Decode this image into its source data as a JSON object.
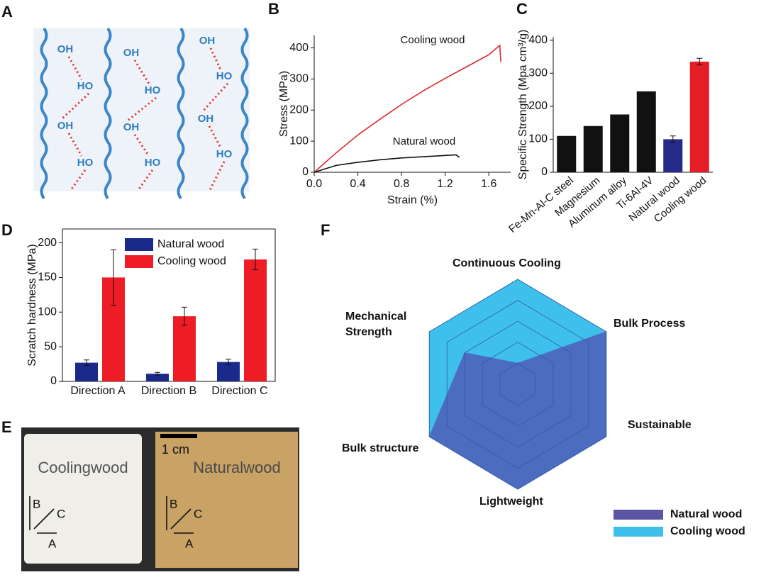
{
  "panel_labels": [
    "A",
    "B",
    "C",
    "D",
    "E",
    "F"
  ],
  "diagram_a": {
    "labels": [
      "OH",
      "HO",
      "OH",
      "HO",
      "OH",
      "HO",
      "OH",
      "HO",
      "OH",
      "HO",
      "OH",
      "HO"
    ]
  },
  "photo_e": {
    "left_label": "Coolingwood",
    "right_label": "Naturalwood",
    "scale": "1 cm",
    "directions": [
      "A",
      "B",
      "C"
    ]
  },
  "chart_data": [
    {
      "type": "line",
      "xlabel": "Strain (%)",
      "ylabel": "Stress (MPa)",
      "xlim": [
        0,
        1.8
      ],
      "xticks": [
        {
          "value": 0,
          "label": "0.0"
        },
        0.4,
        0.8,
        1.2,
        1.6
      ],
      "ylim": [
        0,
        440
      ],
      "yticks": [
        0,
        100,
        200,
        300,
        400
      ],
      "series": [
        {
          "name": "Cooling wood",
          "color": "#e0262b",
          "x": [
            0,
            0.2,
            0.4,
            0.6,
            0.8,
            1.0,
            1.2,
            1.4,
            1.6,
            1.7,
            1.71
          ],
          "values": [
            0,
            62,
            120,
            170,
            218,
            262,
            302,
            340,
            378,
            408,
            355
          ]
        },
        {
          "name": "Natural wood",
          "color": "#111111",
          "x": [
            0,
            0.2,
            0.4,
            0.6,
            0.8,
            1.0,
            1.2,
            1.3,
            1.33
          ],
          "values": [
            0,
            22,
            32,
            40,
            46,
            50,
            54,
            56,
            48
          ]
        }
      ]
    },
    {
      "type": "bar",
      "ylabel": "Specific Strength (Mpa cm³/g)",
      "categories": [
        "Fe-Mn-Al-C steel",
        "Magnesium",
        "Aluminum alloy",
        "Ti-6Al-4V",
        "Natural wood",
        "Cooling wood"
      ],
      "values": [
        110,
        140,
        175,
        245,
        100,
        335
      ],
      "errors": [
        null,
        null,
        null,
        null,
        10,
        10
      ],
      "colors": [
        "#111111",
        "#111111",
        "#111111",
        "#111111",
        "#252a8a",
        "#e31e24"
      ],
      "ylim": [
        0,
        410
      ],
      "yticks": [
        0,
        100,
        200,
        300,
        400
      ]
    },
    {
      "type": "grouped_bar",
      "ylabel": "Scratch hardness (MPa)",
      "categories": [
        "Direction A",
        "Direction B",
        "Direction C"
      ],
      "series": [
        {
          "name": "Natural wood",
          "color": "#1b2a8a",
          "values": [
            27,
            11,
            28
          ],
          "errors": [
            4,
            2,
            4
          ]
        },
        {
          "name": "Cooling wood",
          "color": "#ee1c25",
          "values": [
            150,
            94,
            176
          ],
          "errors": [
            40,
            13,
            15
          ]
        }
      ],
      "ylim": [
        0,
        220
      ],
      "yticks": [
        0,
        50,
        100,
        150,
        200
      ],
      "legend": "upper left"
    },
    {
      "type": "radar",
      "axes": [
        "Continuous Cooling",
        "Bulk Process",
        "Sustainable",
        "Lightweight",
        "Bulk structure",
        "Mechanical Strength"
      ],
      "rlim": [
        0,
        5
      ],
      "rticks": [
        1,
        2,
        3,
        4,
        5
      ],
      "series": [
        {
          "name": "Cooling wood",
          "color": "#3fc0ec",
          "values": [
            5,
            5,
            5,
            5,
            5,
            5
          ]
        },
        {
          "name": "Natural wood",
          "color": "#4b6cbf",
          "values": [
            1,
            5,
            5,
            5,
            5,
            3
          ]
        }
      ],
      "legend": "lower right"
    }
  ]
}
